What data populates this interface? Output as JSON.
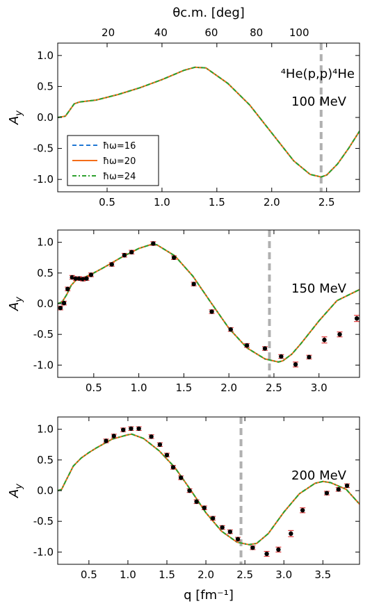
{
  "figure": {
    "top_axis_label": "θc.m. [deg]",
    "x_axis_label": "q [fm⁻¹]",
    "reaction": "⁴He(p,p)⁴He"
  },
  "legend": [
    {
      "label": "ħω=16",
      "color": "#1f77d4",
      "style": "dashed"
    },
    {
      "label": "ħω=20",
      "color": "#f46d18",
      "style": "solid"
    },
    {
      "label": "ħω=24",
      "color": "#2ca02c",
      "style": "dashdot"
    }
  ],
  "colors": {
    "marker": "#000000",
    "errorbar": "#e0383a",
    "vline": "#b0b0b0"
  },
  "chart_data": [
    {
      "type": "line",
      "panel_label": "100 MeV",
      "ylabel": "Ay",
      "xlim": [
        0.05,
        2.8
      ],
      "ylim": [
        -1.2,
        1.2
      ],
      "x_ticks": [
        0.5,
        1.0,
        1.5,
        2.0,
        2.5
      ],
      "x_tick_labels": [
        "0.5",
        "1.0",
        "1.5",
        "2.0",
        "2.5"
      ],
      "y_ticks": [
        -1.0,
        -0.5,
        0.0,
        0.5,
        1.0
      ],
      "y_tick_labels": [
        "-1.0",
        "-0.5",
        "0.0",
        "0.5",
        "1.0"
      ],
      "top_axis": {
        "label": "θc.m. [deg]",
        "ticks": [
          20,
          40,
          60,
          80,
          100
        ],
        "tick_labels": [
          "20",
          "40",
          "60",
          "80",
          "100"
        ],
        "q_positions": [
          0.51,
          0.99,
          1.45,
          1.86,
          2.25
        ]
      },
      "vline": 2.45,
      "series": [
        {
          "name": "ħω=16",
          "x": [
            0.05,
            0.12,
            0.16,
            0.2,
            0.25,
            0.4,
            0.6,
            0.8,
            1.0,
            1.2,
            1.3,
            1.4,
            1.6,
            1.8,
            2.0,
            2.2,
            2.35,
            2.45,
            2.5,
            2.6,
            2.7,
            2.8
          ],
          "y": [
            0.0,
            0.02,
            0.12,
            0.22,
            0.25,
            0.28,
            0.37,
            0.48,
            0.61,
            0.76,
            0.81,
            0.8,
            0.55,
            0.2,
            -0.25,
            -0.7,
            -0.92,
            -0.96,
            -0.93,
            -0.75,
            -0.5,
            -0.22
          ]
        },
        {
          "name": "ħω=20",
          "x": [
            0.05,
            0.12,
            0.16,
            0.2,
            0.25,
            0.4,
            0.6,
            0.8,
            1.0,
            1.2,
            1.3,
            1.4,
            1.6,
            1.8,
            2.0,
            2.2,
            2.35,
            2.45,
            2.5,
            2.6,
            2.7,
            2.8
          ],
          "y": [
            0.0,
            0.02,
            0.12,
            0.22,
            0.25,
            0.28,
            0.37,
            0.48,
            0.61,
            0.76,
            0.81,
            0.8,
            0.55,
            0.2,
            -0.25,
            -0.7,
            -0.92,
            -0.96,
            -0.93,
            -0.75,
            -0.5,
            -0.22
          ]
        },
        {
          "name": "ħω=24",
          "x": [
            0.05,
            0.12,
            0.16,
            0.2,
            0.25,
            0.4,
            0.6,
            0.8,
            1.0,
            1.2,
            1.3,
            1.4,
            1.6,
            1.8,
            2.0,
            2.2,
            2.35,
            2.45,
            2.5,
            2.6,
            2.7,
            2.8
          ],
          "y": [
            0.0,
            0.02,
            0.12,
            0.22,
            0.25,
            0.28,
            0.37,
            0.48,
            0.61,
            0.76,
            0.81,
            0.8,
            0.55,
            0.2,
            -0.25,
            -0.7,
            -0.92,
            -0.96,
            -0.93,
            -0.75,
            -0.5,
            -0.22
          ]
        }
      ],
      "points": []
    },
    {
      "type": "line",
      "panel_label": "150 MeV",
      "ylabel": "Ay",
      "xlim": [
        0.1,
        3.45
      ],
      "ylim": [
        -1.2,
        1.2
      ],
      "x_ticks": [
        0.5,
        1.0,
        1.5,
        2.0,
        2.5,
        3.0
      ],
      "x_tick_labels": [
        "0.5",
        "1.0",
        "1.5",
        "2.0",
        "2.5",
        "3.0"
      ],
      "y_ticks": [
        -1.0,
        -0.5,
        0.0,
        0.5,
        1.0
      ],
      "y_tick_labels": [
        "-1.0",
        "-0.5",
        "0.0",
        "0.5",
        "1.0"
      ],
      "vline": 2.45,
      "series": [
        {
          "name": "ħω=16",
          "x": [
            0.1,
            0.15,
            0.2,
            0.25,
            0.3,
            0.4,
            0.5,
            0.6,
            0.8,
            1.0,
            1.15,
            1.2,
            1.4,
            1.6,
            1.8,
            2.0,
            2.2,
            2.4,
            2.55,
            2.6,
            2.7,
            2.8,
            3.0,
            3.2,
            3.45
          ],
          "y": [
            0.0,
            0.03,
            0.15,
            0.3,
            0.38,
            0.43,
            0.5,
            0.58,
            0.75,
            0.9,
            0.97,
            0.96,
            0.78,
            0.45,
            0.02,
            -0.4,
            -0.72,
            -0.9,
            -0.95,
            -0.93,
            -0.82,
            -0.65,
            -0.28,
            0.05,
            0.23
          ]
        },
        {
          "name": "ħω=20",
          "x": [
            0.1,
            0.15,
            0.2,
            0.25,
            0.3,
            0.4,
            0.5,
            0.6,
            0.8,
            1.0,
            1.15,
            1.2,
            1.4,
            1.6,
            1.8,
            2.0,
            2.2,
            2.4,
            2.55,
            2.6,
            2.7,
            2.8,
            3.0,
            3.2,
            3.45
          ],
          "y": [
            0.0,
            0.03,
            0.15,
            0.3,
            0.38,
            0.43,
            0.5,
            0.58,
            0.75,
            0.9,
            0.97,
            0.96,
            0.78,
            0.45,
            0.02,
            -0.4,
            -0.72,
            -0.9,
            -0.95,
            -0.93,
            -0.82,
            -0.65,
            -0.28,
            0.05,
            0.23
          ]
        },
        {
          "name": "ħω=24",
          "x": [
            0.1,
            0.15,
            0.2,
            0.25,
            0.3,
            0.4,
            0.5,
            0.6,
            0.8,
            1.0,
            1.15,
            1.2,
            1.4,
            1.6,
            1.8,
            2.0,
            2.2,
            2.4,
            2.55,
            2.6,
            2.7,
            2.8,
            3.0,
            3.2,
            3.45
          ],
          "y": [
            0.0,
            0.03,
            0.15,
            0.3,
            0.38,
            0.43,
            0.5,
            0.58,
            0.75,
            0.9,
            0.97,
            0.96,
            0.78,
            0.45,
            0.02,
            -0.4,
            -0.72,
            -0.9,
            -0.95,
            -0.93,
            -0.82,
            -0.65,
            -0.28,
            0.05,
            0.23
          ]
        }
      ],
      "points": [
        {
          "x": 0.13,
          "y": -0.07,
          "err": 0.03
        },
        {
          "x": 0.17,
          "y": 0.01,
          "err": 0.03
        },
        {
          "x": 0.21,
          "y": 0.24,
          "err": 0.03
        },
        {
          "x": 0.26,
          "y": 0.43,
          "err": 0.03
        },
        {
          "x": 0.3,
          "y": 0.41,
          "err": 0.03
        },
        {
          "x": 0.34,
          "y": 0.41,
          "err": 0.03
        },
        {
          "x": 0.38,
          "y": 0.4,
          "err": 0.03
        },
        {
          "x": 0.42,
          "y": 0.41,
          "err": 0.03
        },
        {
          "x": 0.47,
          "y": 0.47,
          "err": 0.03
        },
        {
          "x": 0.7,
          "y": 0.64,
          "err": 0.03
        },
        {
          "x": 0.84,
          "y": 0.79,
          "err": 0.03
        },
        {
          "x": 0.92,
          "y": 0.84,
          "err": 0.03
        },
        {
          "x": 1.16,
          "y": 0.98,
          "err": 0.03
        },
        {
          "x": 1.39,
          "y": 0.75,
          "err": 0.03
        },
        {
          "x": 1.61,
          "y": 0.32,
          "err": 0.03
        },
        {
          "x": 1.81,
          "y": -0.13,
          "err": 0.03
        },
        {
          "x": 2.02,
          "y": -0.42,
          "err": 0.03
        },
        {
          "x": 2.2,
          "y": -0.68,
          "err": 0.03
        },
        {
          "x": 2.4,
          "y": -0.73,
          "err": 0.03
        },
        {
          "x": 2.58,
          "y": -0.86,
          "err": 0.03
        },
        {
          "x": 2.74,
          "y": -0.99,
          "err": 0.04
        },
        {
          "x": 2.89,
          "y": -0.87,
          "err": 0.03
        },
        {
          "x": 3.06,
          "y": -0.59,
          "err": 0.05
        },
        {
          "x": 3.23,
          "y": -0.5,
          "err": 0.04
        },
        {
          "x": 3.42,
          "y": -0.24,
          "err": 0.05
        }
      ]
    },
    {
      "type": "line",
      "panel_label": "200 MeV",
      "ylabel": "Ay",
      "xlim": [
        0.1,
        3.97
      ],
      "ylim": [
        -1.2,
        1.2
      ],
      "x_ticks": [
        0.5,
        1.0,
        1.5,
        2.0,
        2.5,
        3.0,
        3.5
      ],
      "x_tick_labels": [
        "0.5",
        "1.0",
        "1.5",
        "2.0",
        "2.5",
        "3.0",
        "3.5"
      ],
      "y_ticks": [
        -1.0,
        -0.5,
        0.0,
        0.5,
        1.0
      ],
      "y_tick_labels": [
        "-1.0",
        "-0.5",
        "0.0",
        "0.5",
        "1.0"
      ],
      "vline": 2.45,
      "series": [
        {
          "name": "ħω=16",
          "x": [
            0.1,
            0.15,
            0.2,
            0.3,
            0.4,
            0.5,
            0.6,
            0.8,
            1.0,
            1.05,
            1.2,
            1.4,
            1.6,
            1.8,
            2.0,
            2.2,
            2.4,
            2.55,
            2.65,
            2.8,
            3.0,
            3.2,
            3.4,
            3.5,
            3.6,
            3.8,
            3.97
          ],
          "y": [
            0.0,
            0.02,
            0.15,
            0.4,
            0.53,
            0.62,
            0.7,
            0.84,
            0.91,
            0.92,
            0.85,
            0.65,
            0.38,
            0.02,
            -0.36,
            -0.66,
            -0.84,
            -0.88,
            -0.86,
            -0.7,
            -0.35,
            -0.05,
            0.12,
            0.15,
            0.13,
            0.02,
            -0.22
          ]
        },
        {
          "name": "ħω=20",
          "x": [
            0.1,
            0.15,
            0.2,
            0.3,
            0.4,
            0.5,
            0.6,
            0.8,
            1.0,
            1.05,
            1.2,
            1.4,
            1.6,
            1.8,
            2.0,
            2.2,
            2.4,
            2.55,
            2.65,
            2.8,
            3.0,
            3.2,
            3.4,
            3.5,
            3.6,
            3.8,
            3.97
          ],
          "y": [
            0.0,
            0.02,
            0.15,
            0.4,
            0.53,
            0.62,
            0.7,
            0.84,
            0.91,
            0.92,
            0.85,
            0.65,
            0.38,
            0.02,
            -0.36,
            -0.66,
            -0.84,
            -0.88,
            -0.86,
            -0.7,
            -0.35,
            -0.05,
            0.12,
            0.15,
            0.13,
            0.02,
            -0.22
          ]
        },
        {
          "name": "ħω=24",
          "x": [
            0.1,
            0.15,
            0.2,
            0.3,
            0.4,
            0.5,
            0.6,
            0.8,
            1.0,
            1.05,
            1.2,
            1.4,
            1.6,
            1.8,
            2.0,
            2.2,
            2.4,
            2.55,
            2.65,
            2.8,
            3.0,
            3.2,
            3.4,
            3.5,
            3.6,
            3.8,
            3.97
          ],
          "y": [
            0.0,
            0.02,
            0.15,
            0.4,
            0.53,
            0.62,
            0.7,
            0.84,
            0.91,
            0.92,
            0.85,
            0.65,
            0.38,
            0.02,
            -0.36,
            -0.66,
            -0.84,
            -0.88,
            -0.86,
            -0.7,
            -0.35,
            -0.05,
            0.12,
            0.15,
            0.13,
            0.02,
            -0.22
          ]
        }
      ],
      "points": [
        {
          "x": 0.72,
          "y": 0.81,
          "err": 0.03
        },
        {
          "x": 0.82,
          "y": 0.89,
          "err": 0.03
        },
        {
          "x": 0.94,
          "y": 0.99,
          "err": 0.03
        },
        {
          "x": 1.04,
          "y": 1.01,
          "err": 0.03
        },
        {
          "x": 1.14,
          "y": 1.01,
          "err": 0.03
        },
        {
          "x": 1.3,
          "y": 0.88,
          "err": 0.03
        },
        {
          "x": 1.41,
          "y": 0.75,
          "err": 0.03
        },
        {
          "x": 1.5,
          "y": 0.58,
          "err": 0.03
        },
        {
          "x": 1.58,
          "y": 0.38,
          "err": 0.03
        },
        {
          "x": 1.68,
          "y": 0.21,
          "err": 0.03
        },
        {
          "x": 1.79,
          "y": 0.0,
          "err": 0.03
        },
        {
          "x": 1.88,
          "y": -0.18,
          "err": 0.03
        },
        {
          "x": 1.98,
          "y": -0.28,
          "err": 0.03
        },
        {
          "x": 2.09,
          "y": -0.45,
          "err": 0.03
        },
        {
          "x": 2.21,
          "y": -0.6,
          "err": 0.03
        },
        {
          "x": 2.31,
          "y": -0.67,
          "err": 0.03
        },
        {
          "x": 2.41,
          "y": -0.79,
          "err": 0.03
        },
        {
          "x": 2.6,
          "y": -0.93,
          "err": 0.03
        },
        {
          "x": 2.78,
          "y": -1.03,
          "err": 0.04
        },
        {
          "x": 2.93,
          "y": -0.96,
          "err": 0.04
        },
        {
          "x": 3.09,
          "y": -0.7,
          "err": 0.05
        },
        {
          "x": 3.24,
          "y": -0.32,
          "err": 0.04
        },
        {
          "x": 3.55,
          "y": -0.04,
          "err": 0.03
        },
        {
          "x": 3.7,
          "y": 0.02,
          "err": 0.03
        },
        {
          "x": 3.81,
          "y": 0.08,
          "err": 0.03
        }
      ]
    }
  ]
}
